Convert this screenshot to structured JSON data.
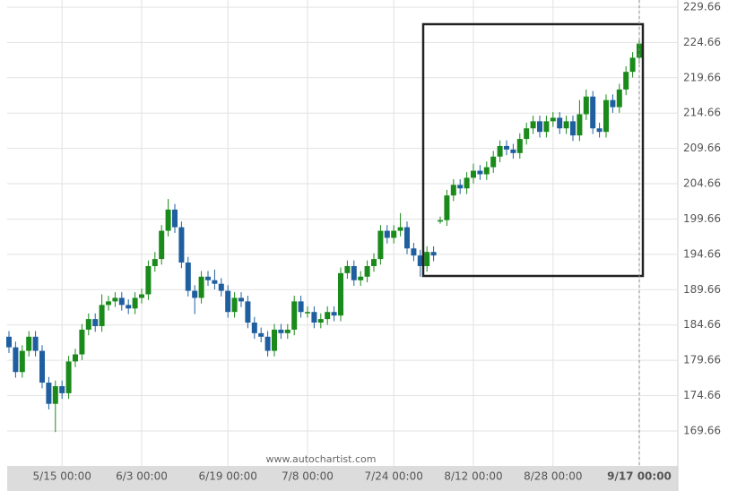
{
  "chart_data": {
    "type": "candlestick",
    "watermark": "www.autochartist.com",
    "up_color": "#1a8a1a",
    "down_color": "#1f5fa0",
    "categories": [
      null,
      null,
      null,
      null,
      null,
      null,
      null,
      null,
      "5/15 00:00",
      null,
      null,
      null,
      null,
      null,
      null,
      null,
      null,
      null,
      null,
      null,
      "6/3 00:00",
      null,
      null,
      null,
      null,
      null,
      null,
      null,
      null,
      null,
      null,
      null,
      null,
      "6/19 00:00",
      null,
      null,
      null,
      null,
      null,
      null,
      null,
      null,
      null,
      null,
      null,
      "7/8 00:00",
      null,
      null,
      null,
      null,
      null,
      null,
      null,
      null,
      null,
      null,
      null,
      null,
      "7/24 00:00",
      null,
      null,
      null,
      null,
      null,
      null,
      null,
      null,
      null,
      null,
      null,
      "8/12 00:00",
      null,
      null,
      null,
      null,
      null,
      null,
      null,
      null,
      null,
      null,
      null,
      "8/28 00:00",
      null,
      null,
      null,
      null,
      null,
      null,
      null,
      null,
      null,
      null,
      null,
      null,
      "9/17 00:00"
    ],
    "open": [
      183,
      181.5,
      178,
      181,
      183,
      181,
      176.5,
      173.5,
      176,
      175,
      179.5,
      180.5,
      184,
      185.5,
      184.5,
      187.5,
      188,
      188.5,
      187.5,
      187,
      188.5,
      189,
      193,
      194,
      198,
      201,
      198.5,
      193.5,
      189.5,
      188.5,
      191.5,
      191,
      190.5,
      189.5,
      186.5,
      188.5,
      188,
      185,
      183.5,
      183,
      181,
      184,
      183.5,
      184,
      188,
      186.5,
      186.5,
      185,
      185.5,
      186.5,
      186,
      192,
      193,
      191,
      191.5,
      193,
      194,
      198,
      197,
      198,
      198.5,
      195.5,
      194.5,
      193,
      195,
      199.3,
      199.5,
      203,
      204.5,
      204,
      205.5,
      206.5,
      206,
      207,
      208.5,
      210,
      209.5,
      209,
      211,
      212.5,
      213.5,
      212,
      213.5,
      214,
      212.5,
      213.5,
      211.5,
      214.5,
      217,
      212.5,
      212,
      216.5,
      215.5,
      218,
      220.5,
      222.5
    ],
    "high": [
      183.8,
      182.3,
      181.8,
      183.8,
      183.8,
      181.8,
      177.3,
      176.8,
      176.8,
      180.3,
      181.3,
      184.8,
      186.3,
      186.3,
      189,
      188.8,
      189.3,
      189.3,
      188.3,
      189.3,
      189.8,
      193.8,
      195,
      198.8,
      202.5,
      201.8,
      199.3,
      194.3,
      190.3,
      192.3,
      192.3,
      192.5,
      191.3,
      190.3,
      189.3,
      189.3,
      188.8,
      185.8,
      184.3,
      183.8,
      184.8,
      184.8,
      184.8,
      188.8,
      188.8,
      187.3,
      187.3,
      186.3,
      187.3,
      187.3,
      192.8,
      193.8,
      193.8,
      192.3,
      193.8,
      194.8,
      198.8,
      198.8,
      198.8,
      200.5,
      199.3,
      196.3,
      195.3,
      195.8,
      195.8,
      200,
      203.8,
      205.3,
      205.3,
      206.3,
      207.5,
      207.3,
      207.8,
      209.3,
      210.8,
      210.8,
      210.3,
      211.8,
      213.3,
      214.3,
      214.3,
      214.3,
      214.8,
      214.8,
      214.3,
      214.3,
      216.5,
      218,
      217.8,
      213.3,
      217.3,
      217.3,
      218.8,
      221.3,
      223.3,
      225.3
    ],
    "low": [
      180.7,
      177.2,
      177.2,
      180.2,
      180.2,
      175.7,
      172.7,
      169.5,
      174.2,
      174.2,
      178.7,
      179.7,
      183.2,
      183.7,
      183.7,
      186.7,
      187.2,
      186.7,
      186.2,
      186.2,
      187.7,
      188.2,
      192.2,
      193.2,
      197.2,
      197.7,
      192.7,
      188.7,
      186.2,
      187.7,
      190.2,
      189.7,
      188.7,
      185.7,
      185.7,
      187.2,
      184.2,
      182.7,
      182.2,
      180.2,
      180.2,
      182.7,
      182.7,
      183.2,
      185.7,
      185.7,
      184.2,
      184.2,
      184.7,
      185.2,
      185.2,
      191.2,
      190.2,
      190.2,
      190.7,
      192.2,
      193.2,
      196.2,
      196.2,
      197.2,
      194.7,
      193.7,
      191.5,
      192.2,
      193.7,
      199,
      198.7,
      202.2,
      203.2,
      203.2,
      204.7,
      205.2,
      205.2,
      206.2,
      207.7,
      208.7,
      208.2,
      208.2,
      210.2,
      211.7,
      211.2,
      211.2,
      212.7,
      211.7,
      211.7,
      210.7,
      210.7,
      213.7,
      211.7,
      211.2,
      211.2,
      214.7,
      214.7,
      217.2,
      219.7,
      221.7
    ],
    "close": [
      181.5,
      178,
      181,
      183,
      181,
      176.5,
      173.5,
      176,
      175,
      179.5,
      180.5,
      184,
      185.5,
      184.5,
      187.5,
      188,
      188.5,
      187.5,
      187,
      188.5,
      189,
      193,
      194,
      198,
      201,
      198.5,
      193.5,
      189.5,
      188.5,
      191.5,
      191,
      190.5,
      189.5,
      186.5,
      188.5,
      188,
      185,
      183.5,
      183,
      181,
      184,
      183.5,
      184,
      188,
      186.5,
      186.5,
      185,
      185.5,
      186.5,
      186,
      192,
      193,
      191,
      191.5,
      193,
      194,
      198,
      197,
      198,
      198.5,
      195.5,
      194.5,
      193,
      195,
      194.5,
      199.5,
      203,
      204.5,
      204,
      205.5,
      206.5,
      206,
      207,
      208.5,
      210,
      209.5,
      209,
      211,
      212.5,
      213.5,
      212,
      213.5,
      214,
      212.5,
      213.5,
      211.5,
      214.5,
      217,
      212.5,
      212,
      216.5,
      215.5,
      218,
      220.5,
      222.5,
      224.5
    ],
    "ylim": [
      164.71,
      230.67
    ],
    "yticks": [
      169.66,
      174.66,
      179.66,
      184.66,
      189.66,
      194.66,
      199.66,
      204.66,
      209.66,
      214.66,
      219.66,
      224.66,
      229.66
    ],
    "grid": true
  }
}
